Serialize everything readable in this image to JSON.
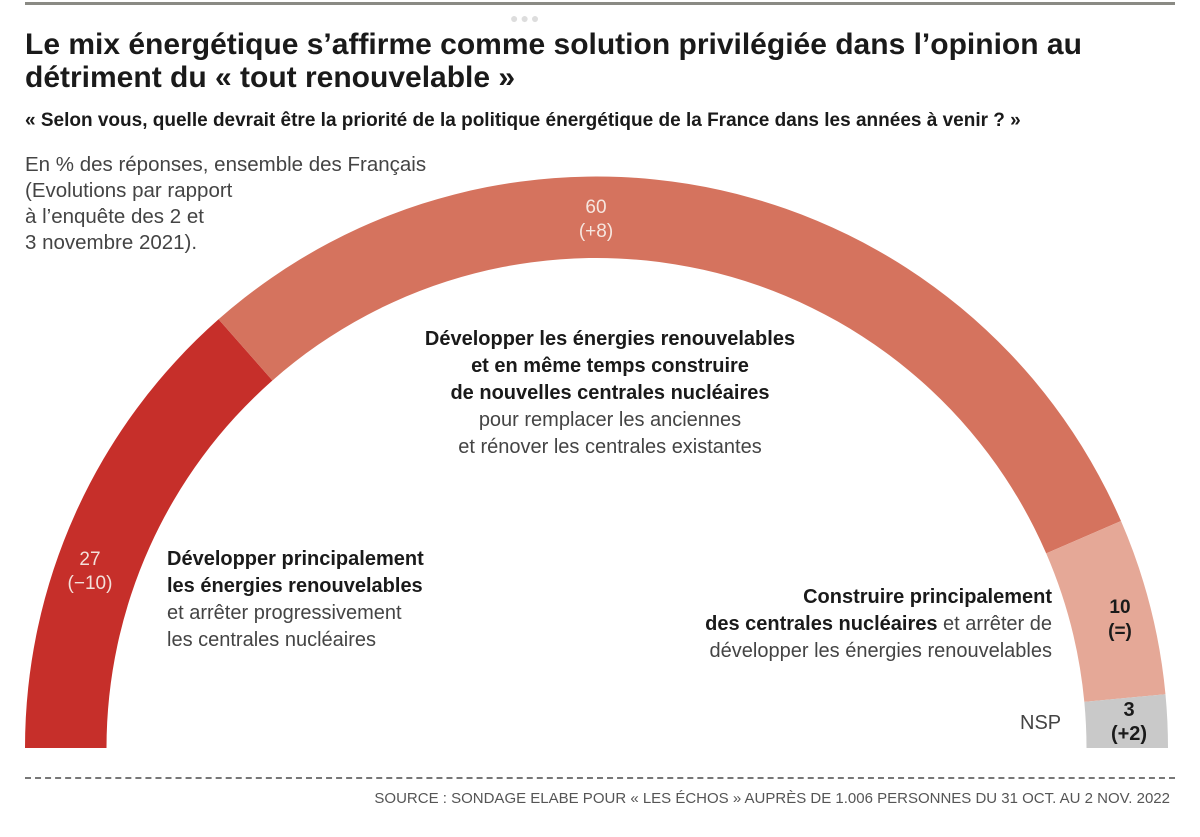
{
  "chart_data": {
    "type": "pie",
    "variant": "semicircle-donut",
    "title": "Le mix énergétique s’affirme comme solution privilégiée dans l’opinion au détriment du « tout renouvelable »",
    "subtitle": "« Selon vous, quelle devrait être la priorité de la politique énergétique de la France dans les années à venir ? »",
    "note_lines": [
      "En % des réponses, ensemble des Français",
      "(Evolutions par rapport",
      "à l’enquête des 2 et",
      "3 novembre 2021)."
    ],
    "unit": "%",
    "segments": [
      {
        "value": 27,
        "change": "(−10)",
        "color": "#c62f2a",
        "label_color": "#f3e0da",
        "label_bold": [
          "Développer principalement",
          "les énergies renouvelables"
        ],
        "label_regular": [
          "et arrêter progressivement",
          "les centrales nucléaires"
        ]
      },
      {
        "value": 60,
        "change": "(+8)",
        "color": "#d5735e",
        "label_color": "#f6e6df",
        "label_bold": [
          "Développer les énergies renouvelables",
          "et en même temps construire",
          "de nouvelles centrales nucléaires"
        ],
        "label_regular": [
          "pour remplacer les anciennes",
          "et rénover les centrales existantes"
        ]
      },
      {
        "value": 10,
        "change": "(=)",
        "color": "#e5a897",
        "label_color": "#1a1a1a",
        "label_bold": [
          "Construire principalement",
          "des centrales nucléaires"
        ],
        "label_regular_inline": "et arrêter de",
        "label_regular": [
          "développer les énergies renouvelables"
        ]
      },
      {
        "value": 3,
        "change": "(+2)",
        "color": "#c9c9c9",
        "label_color": "#1a1a1a",
        "name": "NSP"
      }
    ],
    "source": "SOURCE : SONDAGE ELABE POUR « LES ÉCHOS » AUPRÈS DE 1.006 PERSONNES DU 31 OCT. AU 2 NOV. 2022"
  }
}
